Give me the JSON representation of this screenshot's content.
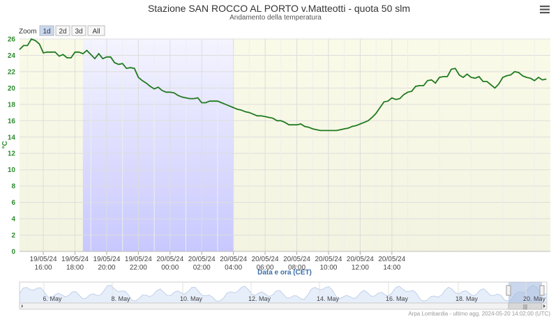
{
  "header": {
    "title": "Stazione SAN ROCCO AL PORTO v.Matteotti - quota 50 slm",
    "subtitle": "Andamento della temperatura",
    "menu_icon": "hamburger-menu-icon"
  },
  "zoom": {
    "label": "Zoom",
    "buttons": [
      {
        "label": "1d",
        "active": true
      },
      {
        "label": "2d",
        "active": false
      },
      {
        "label": "3d",
        "active": false
      },
      {
        "label": "All",
        "active": false
      }
    ]
  },
  "chart_data": {
    "type": "line",
    "xlabel": "Data e ora (CET)",
    "ylabel": "°C",
    "ylim": [
      0,
      26
    ],
    "yticks": [
      0,
      2,
      4,
      6,
      8,
      10,
      12,
      14,
      16,
      18,
      20,
      22,
      24,
      26
    ],
    "xlim_hours": [
      14.5,
      15.0
    ],
    "x_ticks": [
      {
        "date": "19/05/24",
        "time": "16:00"
      },
      {
        "date": "19/05/24",
        "time": "18:00"
      },
      {
        "date": "19/05/24",
        "time": "20:00"
      },
      {
        "date": "19/05/24",
        "time": "22:00"
      },
      {
        "date": "20/05/24",
        "time": "00:00"
      },
      {
        "date": "20/05/24",
        "time": "02:00"
      },
      {
        "date": "20/05/24",
        "time": "04:00"
      },
      {
        "date": "20/05/24",
        "time": "06:00"
      },
      {
        "date": "20/05/24",
        "time": "08:00"
      },
      {
        "date": "20/05/24",
        "time": "10:00"
      },
      {
        "date": "20/05/24",
        "time": "12:00"
      },
      {
        "date": "20/05/24",
        "time": "14:00"
      }
    ],
    "grid": true,
    "series": [
      {
        "color": "#1f7a1f",
        "points": [
          [
            14.5,
            24.7
          ],
          [
            14.75,
            25.2
          ],
          [
            15.0,
            25.2
          ],
          [
            15.25,
            26.0
          ],
          [
            15.5,
            25.8
          ],
          [
            15.75,
            25.4
          ],
          [
            16.0,
            24.3
          ],
          [
            16.25,
            24.4
          ],
          [
            16.5,
            24.4
          ],
          [
            16.75,
            24.4
          ],
          [
            17.0,
            23.9
          ],
          [
            17.25,
            24.1
          ],
          [
            17.5,
            23.7
          ],
          [
            17.75,
            23.7
          ],
          [
            18.0,
            24.4
          ],
          [
            18.25,
            24.4
          ],
          [
            18.5,
            24.2
          ],
          [
            18.75,
            24.6
          ],
          [
            19.0,
            24.1
          ],
          [
            19.25,
            23.6
          ],
          [
            19.5,
            24.2
          ],
          [
            19.75,
            23.6
          ],
          [
            20.0,
            23.8
          ],
          [
            20.25,
            23.8
          ],
          [
            20.5,
            23.1
          ],
          [
            20.75,
            22.9
          ],
          [
            21.0,
            23.0
          ],
          [
            21.25,
            22.4
          ],
          [
            21.5,
            22.5
          ],
          [
            21.75,
            22.4
          ],
          [
            22.0,
            21.3
          ],
          [
            22.25,
            20.9
          ],
          [
            22.5,
            20.6
          ],
          [
            22.75,
            20.2
          ],
          [
            23.0,
            19.9
          ],
          [
            23.25,
            20.1
          ],
          [
            23.5,
            19.7
          ],
          [
            23.75,
            19.5
          ],
          [
            24.0,
            19.5
          ],
          [
            24.25,
            19.4
          ],
          [
            24.5,
            19.1
          ],
          [
            24.75,
            18.9
          ],
          [
            25.0,
            18.8
          ],
          [
            25.25,
            18.7
          ],
          [
            25.5,
            18.7
          ],
          [
            25.75,
            18.8
          ],
          [
            26.0,
            18.2
          ],
          [
            26.25,
            18.2
          ],
          [
            26.5,
            18.4
          ],
          [
            26.75,
            18.4
          ],
          [
            27.0,
            18.4
          ],
          [
            27.25,
            18.2
          ],
          [
            27.5,
            18.0
          ],
          [
            27.75,
            17.8
          ],
          [
            28.0,
            17.6
          ],
          [
            28.25,
            17.4
          ],
          [
            28.5,
            17.3
          ],
          [
            28.75,
            17.1
          ],
          [
            29.0,
            17.0
          ],
          [
            29.25,
            16.8
          ],
          [
            29.5,
            16.6
          ],
          [
            29.75,
            16.6
          ],
          [
            30.0,
            16.5
          ],
          [
            30.25,
            16.4
          ],
          [
            30.5,
            16.3
          ],
          [
            30.75,
            16.0
          ],
          [
            31.0,
            16.0
          ],
          [
            31.25,
            15.8
          ],
          [
            31.5,
            15.5
          ],
          [
            31.75,
            15.5
          ],
          [
            32.0,
            15.5
          ],
          [
            32.25,
            15.6
          ],
          [
            32.5,
            15.3
          ],
          [
            32.75,
            15.2
          ],
          [
            33.0,
            15.0
          ],
          [
            33.25,
            14.9
          ],
          [
            33.5,
            14.8
          ],
          [
            33.75,
            14.8
          ],
          [
            34.0,
            14.8
          ],
          [
            34.25,
            14.8
          ],
          [
            34.5,
            14.8
          ],
          [
            34.75,
            14.9
          ],
          [
            35.0,
            15.0
          ],
          [
            35.25,
            15.1
          ],
          [
            35.5,
            15.3
          ],
          [
            35.75,
            15.4
          ],
          [
            36.0,
            15.6
          ],
          [
            36.25,
            15.8
          ],
          [
            36.5,
            16.0
          ],
          [
            36.75,
            16.4
          ],
          [
            37.0,
            16.9
          ],
          [
            37.25,
            17.6
          ],
          [
            37.5,
            18.3
          ],
          [
            37.75,
            18.4
          ],
          [
            38.0,
            18.8
          ],
          [
            38.25,
            18.6
          ],
          [
            38.5,
            18.7
          ],
          [
            38.75,
            19.2
          ],
          [
            39.0,
            19.5
          ],
          [
            39.25,
            19.6
          ],
          [
            39.5,
            20.2
          ],
          [
            39.75,
            20.3
          ],
          [
            40.0,
            20.3
          ],
          [
            40.25,
            20.9
          ],
          [
            40.5,
            21.0
          ],
          [
            40.75,
            20.6
          ],
          [
            41.0,
            21.3
          ],
          [
            41.25,
            21.4
          ],
          [
            41.5,
            21.4
          ],
          [
            41.75,
            22.3
          ],
          [
            42.0,
            22.4
          ],
          [
            42.25,
            21.6
          ],
          [
            42.5,
            21.3
          ],
          [
            42.75,
            21.7
          ],
          [
            43.0,
            21.3
          ],
          [
            43.25,
            21.2
          ],
          [
            43.5,
            21.4
          ],
          [
            43.75,
            20.8
          ],
          [
            44.0,
            20.8
          ],
          [
            44.25,
            20.4
          ],
          [
            44.5,
            20.0
          ],
          [
            44.75,
            20.5
          ],
          [
            45.0,
            21.3
          ],
          [
            45.25,
            21.5
          ],
          [
            45.5,
            21.6
          ],
          [
            45.75,
            22.0
          ],
          [
            46.0,
            21.9
          ],
          [
            46.25,
            21.5
          ],
          [
            46.5,
            21.3
          ],
          [
            46.75,
            21.2
          ],
          [
            47.0,
            20.9
          ],
          [
            47.25,
            21.3
          ],
          [
            47.5,
            21.0
          ],
          [
            47.75,
            21.1
          ]
        ]
      }
    ],
    "bands": [
      {
        "from": 14.5,
        "to": 18.5,
        "color": "#f8f8e0"
      },
      {
        "from": 18.5,
        "to": 28.0,
        "color": "band-blue"
      },
      {
        "from": 28.0,
        "to": 48.0,
        "color": "#f8f8e0"
      }
    ]
  },
  "navigator": {
    "labels": [
      "6. May",
      "8. May",
      "10. May",
      "12. May",
      "14. May",
      "16. May",
      "18. May",
      "20. May"
    ]
  },
  "credit": "Arpa Lombardia - ultimo agg. 2024-05-20 14:02:00 (UTC)"
}
